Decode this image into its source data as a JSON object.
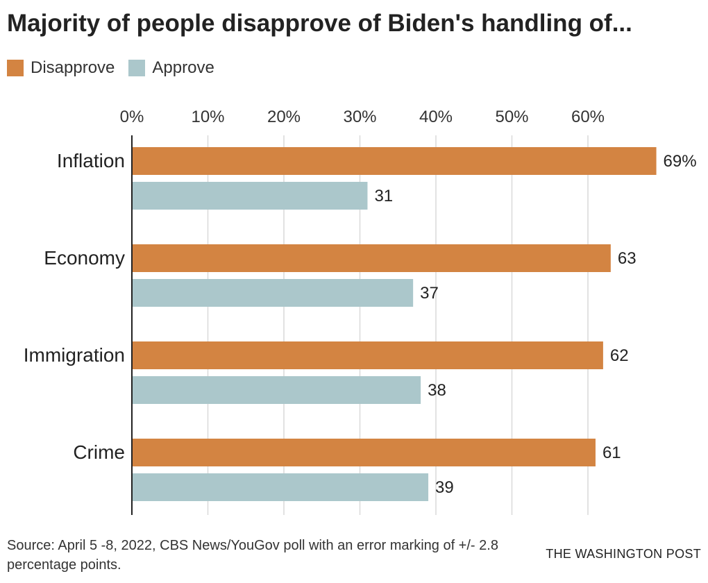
{
  "chart_data": {
    "type": "bar",
    "orientation": "horizontal",
    "title": "Majority of people disapprove of Biden's handling of...",
    "categories": [
      "Inflation",
      "Economy",
      "Immigration",
      "Crime"
    ],
    "series": [
      {
        "name": "Disapprove",
        "color": "#d38442",
        "values": [
          69,
          63,
          62,
          61
        ],
        "labels": [
          "69%",
          "63",
          "62",
          "61"
        ]
      },
      {
        "name": "Approve",
        "color": "#abc7cb",
        "values": [
          31,
          37,
          38,
          39
        ],
        "labels": [
          "31",
          "37",
          "38",
          "39"
        ]
      }
    ],
    "xticks": [
      "0%",
      "10%",
      "20%",
      "30%",
      "40%",
      "50%",
      "60%"
    ],
    "xlim": [
      0,
      70
    ],
    "grid": true,
    "legend_position": "top-left",
    "source": "Source: April 5 -8, 2022, CBS News/YouGov poll with an error marking of +/- 2.8 percentage points.",
    "credit": "THE WASHINGTON POST"
  }
}
